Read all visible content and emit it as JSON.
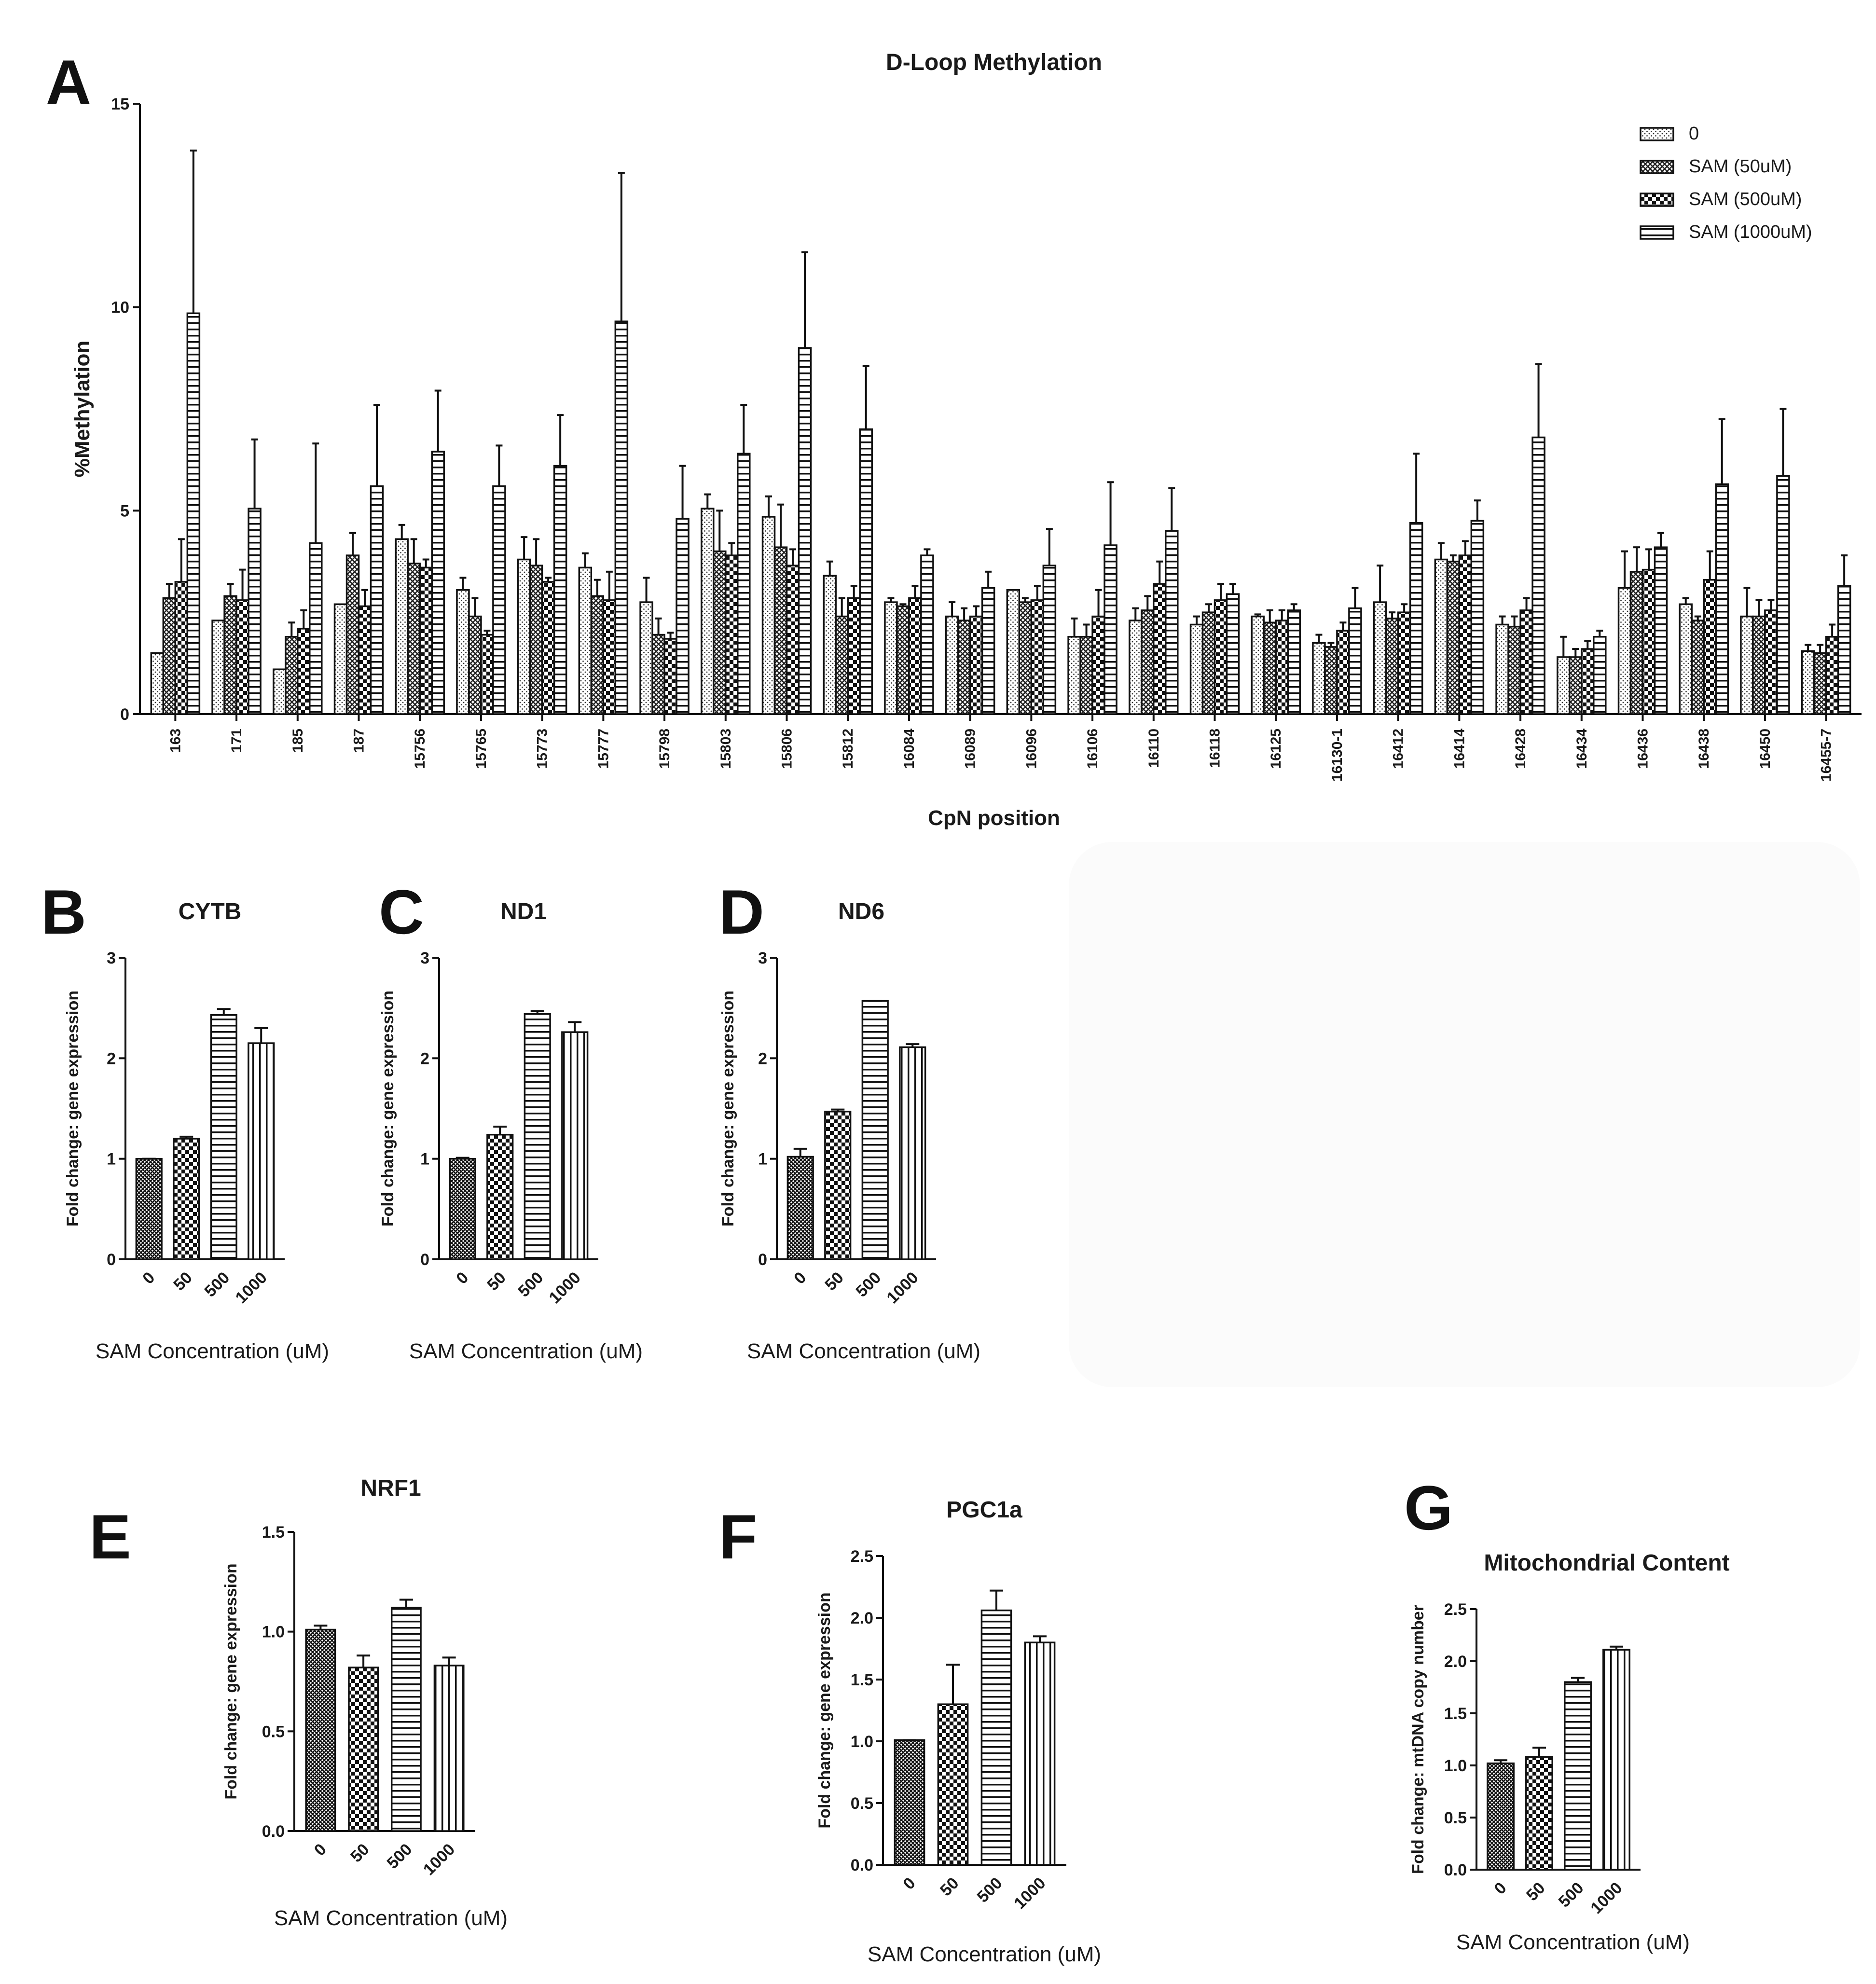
{
  "chart_data": [
    {
      "id": "A",
      "panel_letter": "A",
      "type": "bar",
      "title": "D-Loop Methylation",
      "xlabel": "CpN position",
      "ylabel": "%Methylation",
      "ylim": [
        0,
        15
      ],
      "yticks": [
        0,
        5,
        10,
        15
      ],
      "categories": [
        "163",
        "171",
        "185",
        "187",
        "15756",
        "15765",
        "15773",
        "15777",
        "15798",
        "15803",
        "15806",
        "15812",
        "16084",
        "16089",
        "16096",
        "16106",
        "16110",
        "16118",
        "16125",
        "16130-1",
        "16412",
        "16414",
        "16428",
        "16434",
        "16436",
        "16438",
        "16450",
        "16455-7"
      ],
      "series": [
        {
          "name": "0",
          "pattern": "dots",
          "values": [
            1.5,
            2.3,
            1.1,
            2.7,
            4.3,
            3.05,
            3.8,
            3.6,
            2.75,
            5.05,
            4.85,
            3.4,
            2.75,
            2.4,
            3.05,
            1.9,
            2.3,
            2.2,
            2.4,
            1.75,
            2.75,
            3.8,
            2.2,
            1.4,
            3.1,
            2.7,
            2.4,
            1.55
          ],
          "errors": [
            0,
            0,
            0,
            0,
            0.35,
            0.3,
            0.55,
            0.35,
            0.6,
            0.35,
            0.5,
            0.35,
            0.1,
            0.35,
            0,
            0.45,
            0.3,
            0.2,
            0.05,
            0.2,
            0.9,
            0.4,
            0.2,
            0.5,
            0.9,
            0.15,
            0.7,
            0.15
          ]
        },
        {
          "name": "SAM (50uM)",
          "pattern": "crosshatch",
          "values": [
            2.85,
            2.9,
            1.9,
            3.9,
            3.7,
            2.4,
            3.65,
            2.9,
            1.95,
            4.0,
            4.1,
            2.4,
            2.65,
            2.3,
            2.75,
            1.9,
            2.55,
            2.5,
            2.25,
            1.65,
            2.35,
            3.75,
            2.15,
            1.4,
            3.5,
            2.3,
            2.4,
            1.5
          ],
          "errors": [
            0.35,
            0.3,
            0.35,
            0.55,
            0.6,
            0.45,
            0.65,
            0.4,
            0.4,
            1.0,
            1.05,
            0.45,
            0.05,
            0.3,
            0.1,
            0.3,
            0.35,
            0.2,
            0.3,
            0.1,
            0.15,
            0.15,
            0.25,
            0.2,
            0.6,
            0.1,
            0.4,
            0.2
          ]
        },
        {
          "name": "SAM (500uM)",
          "pattern": "checker",
          "values": [
            3.25,
            2.8,
            2.1,
            2.65,
            3.6,
            1.95,
            3.25,
            2.8,
            1.85,
            3.9,
            3.65,
            2.85,
            2.85,
            2.4,
            2.8,
            2.4,
            3.2,
            2.8,
            2.3,
            2.05,
            2.5,
            3.9,
            2.55,
            1.6,
            3.55,
            3.3,
            2.55,
            1.9
          ],
          "errors": [
            1.05,
            0.75,
            0.45,
            0.4,
            0.2,
            0.1,
            0.1,
            0.7,
            0.15,
            0.3,
            0.4,
            0.3,
            0.3,
            0.25,
            0.35,
            0.65,
            0.55,
            0.4,
            0.25,
            0.2,
            0.2,
            0.35,
            0.3,
            0.2,
            0.5,
            0.7,
            0.25,
            0.3
          ]
        },
        {
          "name": "SAM (1000uM)",
          "pattern": "hlines",
          "values": [
            9.85,
            5.05,
            4.2,
            5.6,
            6.45,
            5.6,
            6.1,
            9.65,
            4.8,
            6.4,
            9.0,
            7.0,
            3.9,
            3.1,
            3.65,
            4.15,
            4.5,
            2.95,
            2.55,
            2.6,
            4.7,
            4.75,
            6.8,
            1.9,
            4.1,
            5.65,
            5.85,
            3.15
          ],
          "errors": [
            4.0,
            1.7,
            2.45,
            2.0,
            1.5,
            1.0,
            1.25,
            3.65,
            1.3,
            1.2,
            2.35,
            1.55,
            0.15,
            0.4,
            0.9,
            1.55,
            1.05,
            0.25,
            0.15,
            0.5,
            1.7,
            0.5,
            1.8,
            0.15,
            0.35,
            1.6,
            1.65,
            0.75
          ]
        }
      ]
    },
    {
      "id": "B",
      "panel_letter": "B",
      "type": "bar",
      "title": "CYTB",
      "xlabel": "SAM Concentration (uM)",
      "ylabel": "Fold change: gene expression",
      "ylim": [
        0,
        3
      ],
      "yticks": [
        "0",
        "1",
        "2",
        "3"
      ],
      "categories": [
        "0",
        "50",
        "500",
        "1000"
      ],
      "values": [
        1.0,
        1.2,
        2.43,
        2.15
      ],
      "errors": [
        0.0,
        0.02,
        0.06,
        0.15
      ]
    },
    {
      "id": "C",
      "panel_letter": "C",
      "type": "bar",
      "title": "ND1",
      "xlabel": "SAM Concentration (uM)",
      "ylabel": "Fold change: gene expression",
      "ylim": [
        0,
        3
      ],
      "yticks": [
        "0",
        "1",
        "2",
        "3"
      ],
      "categories": [
        "0",
        "50",
        "500",
        "1000"
      ],
      "values": [
        1.0,
        1.24,
        2.44,
        2.26
      ],
      "errors": [
        0.01,
        0.08,
        0.03,
        0.1
      ]
    },
    {
      "id": "D",
      "panel_letter": "D",
      "type": "bar",
      "title": "ND6",
      "xlabel": "SAM Concentration (uM)",
      "ylabel": "Fold change: gene expression",
      "ylim": [
        0,
        3
      ],
      "yticks": [
        "0",
        "1",
        "2",
        "3"
      ],
      "categories": [
        "0",
        "50",
        "500",
        "1000"
      ],
      "values": [
        1.02,
        1.47,
        2.57,
        2.11
      ],
      "errors": [
        0.08,
        0.02,
        0.0,
        0.03
      ]
    },
    {
      "id": "E",
      "panel_letter": "E",
      "type": "bar",
      "title": "NRF1",
      "xlabel": "SAM Concentration (uM)",
      "ylabel": "Fold change: gene expression",
      "ylim": [
        0,
        1.5
      ],
      "yticks": [
        "0.0",
        "0.5",
        "1.0",
        "1.5"
      ],
      "categories": [
        "0",
        "50",
        "500",
        "1000"
      ],
      "values": [
        1.01,
        0.82,
        1.12,
        0.83
      ],
      "errors": [
        0.02,
        0.06,
        0.04,
        0.04
      ]
    },
    {
      "id": "F",
      "panel_letter": "F",
      "type": "bar",
      "title": "PGC1a",
      "xlabel": "SAM Concentration (uM)",
      "ylabel": "Fold change: gene expression",
      "ylim": [
        0,
        2.5
      ],
      "yticks": [
        "0.0",
        "0.5",
        "1.0",
        "1.5",
        "2.0",
        "2.5"
      ],
      "categories": [
        "0",
        "50",
        "500",
        "1000"
      ],
      "values": [
        1.01,
        1.3,
        2.06,
        1.8
      ],
      "errors": [
        0.0,
        0.32,
        0.16,
        0.05
      ]
    },
    {
      "id": "G",
      "panel_letter": "G",
      "type": "bar",
      "title": "Mitochondrial Content",
      "xlabel": "SAM Concentration (uM)",
      "ylabel": "Fold change: mtDNA copy number",
      "ylim": [
        0,
        2.5
      ],
      "yticks": [
        "0.0",
        "0.5",
        "1.0",
        "1.5",
        "2.0",
        "2.5"
      ],
      "categories": [
        "0",
        "50",
        "500",
        "1000"
      ],
      "values": [
        1.02,
        1.08,
        1.8,
        2.11
      ],
      "errors": [
        0.03,
        0.09,
        0.04,
        0.03
      ]
    }
  ]
}
